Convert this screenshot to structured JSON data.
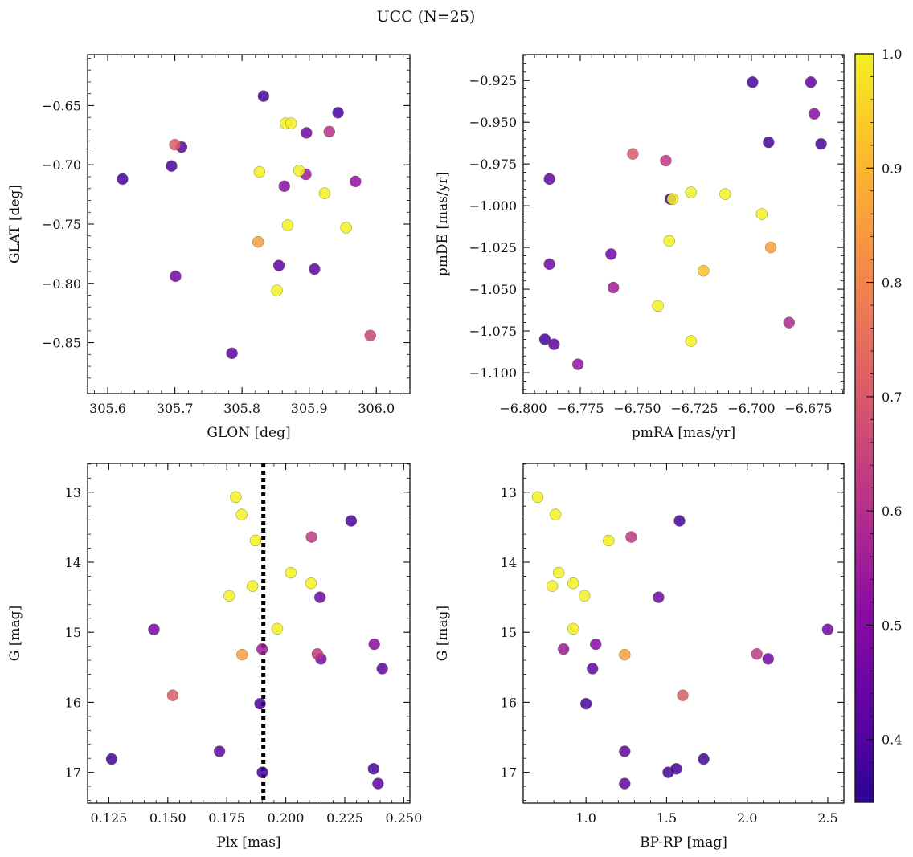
{
  "figure": {
    "title": "UCC (N=25)"
  },
  "colorbar": {
    "min": 0.345,
    "max": 1.0,
    "ticks": [
      0.4,
      0.5,
      0.6,
      0.7,
      0.8,
      0.9,
      1.0
    ],
    "tick_labels": [
      "0.4",
      "0.5",
      "0.6",
      "0.7",
      "0.8",
      "0.9",
      "1.0"
    ],
    "colormap": "plasma"
  },
  "chart_data": [
    {
      "type": "scatter",
      "id": "glon-glat",
      "xlabel": "GLON [deg]",
      "ylabel": "GLAT [deg]",
      "xlim": [
        305.57,
        306.05
      ],
      "ylim": [
        -0.893,
        -0.607
      ],
      "y_inverted": false,
      "xticks": [
        305.6,
        305.7,
        305.8,
        305.9,
        306.0
      ],
      "xtick_labels": [
        "305.6",
        "305.7",
        "305.8",
        "305.9",
        "306.0"
      ],
      "yticks": [
        -0.85,
        -0.8,
        -0.75,
        -0.7,
        -0.65
      ],
      "ytick_labels": [
        "−0.85",
        "−0.80",
        "−0.75",
        "−0.70",
        "−0.65"
      ],
      "points": [
        {
          "x": 305.832,
          "y": -0.642,
          "c": 0.38
        },
        {
          "x": 305.943,
          "y": -0.656,
          "c": 0.38
        },
        {
          "x": 305.865,
          "y": -0.665,
          "c": 1.0
        },
        {
          "x": 305.873,
          "y": -0.665,
          "c": 1.0
        },
        {
          "x": 305.896,
          "y": -0.673,
          "c": 0.45
        },
        {
          "x": 305.93,
          "y": -0.672,
          "c": 0.6
        },
        {
          "x": 305.7,
          "y": -0.683,
          "c": 0.7
        },
        {
          "x": 305.71,
          "y": -0.685,
          "c": 0.42
        },
        {
          "x": 305.695,
          "y": -0.701,
          "c": 0.38
        },
        {
          "x": 305.622,
          "y": -0.712,
          "c": 0.38
        },
        {
          "x": 305.826,
          "y": -0.706,
          "c": 1.0
        },
        {
          "x": 305.885,
          "y": -0.705,
          "c": 1.0
        },
        {
          "x": 305.895,
          "y": -0.708,
          "c": 0.55
        },
        {
          "x": 305.969,
          "y": -0.714,
          "c": 0.52
        },
        {
          "x": 305.863,
          "y": -0.718,
          "c": 0.5
        },
        {
          "x": 305.923,
          "y": -0.724,
          "c": 1.0
        },
        {
          "x": 305.868,
          "y": -0.751,
          "c": 1.0
        },
        {
          "x": 305.955,
          "y": -0.753,
          "c": 1.0
        },
        {
          "x": 305.824,
          "y": -0.765,
          "c": 0.85
        },
        {
          "x": 305.855,
          "y": -0.785,
          "c": 0.42
        },
        {
          "x": 305.908,
          "y": -0.788,
          "c": 0.42
        },
        {
          "x": 305.701,
          "y": -0.794,
          "c": 0.45
        },
        {
          "x": 305.852,
          "y": -0.806,
          "c": 1.0
        },
        {
          "x": 305.785,
          "y": -0.859,
          "c": 0.42
        },
        {
          "x": 305.991,
          "y": -0.844,
          "c": 0.65
        }
      ]
    },
    {
      "type": "scatter",
      "id": "pmra-pmde",
      "xlabel": "pmRA [mas/yr]",
      "ylabel": "pmDE [mas/yr]",
      "xlim": [
        -6.8,
        -6.6595
      ],
      "ylim": [
        -1.1125,
        -0.9095
      ],
      "y_inverted": false,
      "xticks": [
        -6.8,
        -6.775,
        -6.75,
        -6.725,
        -6.7,
        -6.675
      ],
      "xtick_labels": [
        "−6.800",
        "−6.775",
        "−6.750",
        "−6.725",
        "−6.700",
        "−6.675"
      ],
      "yticks": [
        -1.1,
        -1.075,
        -1.05,
        -1.025,
        -1.0,
        -0.975,
        -0.95,
        -0.925
      ],
      "ytick_labels": [
        "−1.100",
        "−1.075",
        "−1.050",
        "−1.025",
        "−1.000",
        "−0.975",
        "−0.950",
        "−0.925"
      ],
      "points": [
        {
          "x": -6.6995,
          "y": -0.926,
          "c": 0.38
        },
        {
          "x": -6.674,
          "y": -0.926,
          "c": 0.42
        },
        {
          "x": -6.6725,
          "y": -0.945,
          "c": 0.5
        },
        {
          "x": -6.6925,
          "y": -0.962,
          "c": 0.38
        },
        {
          "x": -6.6695,
          "y": -0.963,
          "c": 0.38
        },
        {
          "x": -6.752,
          "y": -0.969,
          "c": 0.7
        },
        {
          "x": -6.7375,
          "y": -0.973,
          "c": 0.62
        },
        {
          "x": -6.7885,
          "y": -0.984,
          "c": 0.42
        },
        {
          "x": -6.7265,
          "y": -0.992,
          "c": 1.0
        },
        {
          "x": -6.7115,
          "y": -0.993,
          "c": 1.0
        },
        {
          "x": -6.7355,
          "y": -0.996,
          "c": 0.38
        },
        {
          "x": -6.7345,
          "y": -0.996,
          "c": 1.0
        },
        {
          "x": -6.6955,
          "y": -1.005,
          "c": 1.0
        },
        {
          "x": -6.736,
          "y": -1.021,
          "c": 1.0
        },
        {
          "x": -6.6915,
          "y": -1.025,
          "c": 0.85
        },
        {
          "x": -6.7615,
          "y": -1.029,
          "c": 0.45
        },
        {
          "x": -6.7885,
          "y": -1.035,
          "c": 0.45
        },
        {
          "x": -6.721,
          "y": -1.039,
          "c": 0.92
        },
        {
          "x": -6.7605,
          "y": -1.049,
          "c": 0.55
        },
        {
          "x": -6.741,
          "y": -1.06,
          "c": 1.0
        },
        {
          "x": -6.6835,
          "y": -1.07,
          "c": 0.58
        },
        {
          "x": -6.7905,
          "y": -1.08,
          "c": 0.38
        },
        {
          "x": -6.7865,
          "y": -1.083,
          "c": 0.42
        },
        {
          "x": -6.7265,
          "y": -1.081,
          "c": 1.0
        },
        {
          "x": -6.776,
          "y": -1.095,
          "c": 0.52
        }
      ]
    },
    {
      "type": "scatter",
      "id": "plx-g",
      "xlabel": "Plx [mas]",
      "ylabel": "G [mag]",
      "xlim": [
        0.116,
        0.2526
      ],
      "ylim": [
        12.59,
        17.44
      ],
      "y_inverted": true,
      "xticks": [
        0.125,
        0.15,
        0.175,
        0.2,
        0.225,
        0.25
      ],
      "xtick_labels": [
        "0.125",
        "0.150",
        "0.175",
        "0.200",
        "0.225",
        "0.250"
      ],
      "yticks": [
        13,
        14,
        15,
        16,
        17
      ],
      "ytick_labels": [
        "13",
        "14",
        "15",
        "16",
        "17"
      ],
      "vline": {
        "x": 0.1905
      },
      "points": [
        {
          "x": 0.1788,
          "y": 13.07,
          "c": 1.0
        },
        {
          "x": 0.1813,
          "y": 13.32,
          "c": 1.0
        },
        {
          "x": 0.2277,
          "y": 13.41,
          "c": 0.38
        },
        {
          "x": 0.2109,
          "y": 13.64,
          "c": 0.62
        },
        {
          "x": 0.1872,
          "y": 13.69,
          "c": 1.0
        },
        {
          "x": 0.2021,
          "y": 14.15,
          "c": 1.0
        },
        {
          "x": 0.2107,
          "y": 14.3,
          "c": 1.0
        },
        {
          "x": 0.1859,
          "y": 14.34,
          "c": 1.0
        },
        {
          "x": 0.1761,
          "y": 14.48,
          "c": 1.0
        },
        {
          "x": 0.2145,
          "y": 14.5,
          "c": 0.45
        },
        {
          "x": 0.1441,
          "y": 14.96,
          "c": 0.45
        },
        {
          "x": 0.1964,
          "y": 14.95,
          "c": 1.0
        },
        {
          "x": 0.2375,
          "y": 15.17,
          "c": 0.5
        },
        {
          "x": 0.19,
          "y": 15.24,
          "c": 0.55
        },
        {
          "x": 0.1815,
          "y": 15.32,
          "c": 0.85
        },
        {
          "x": 0.2134,
          "y": 15.31,
          "c": 0.62
        },
        {
          "x": 0.2149,
          "y": 15.38,
          "c": 0.45
        },
        {
          "x": 0.2409,
          "y": 15.52,
          "c": 0.42
        },
        {
          "x": 0.1521,
          "y": 15.9,
          "c": 0.7
        },
        {
          "x": 0.1891,
          "y": 16.02,
          "c": 0.38
        },
        {
          "x": 0.1262,
          "y": 16.81,
          "c": 0.38
        },
        {
          "x": 0.1719,
          "y": 16.7,
          "c": 0.42
        },
        {
          "x": 0.1901,
          "y": 17.0,
          "c": 0.38
        },
        {
          "x": 0.2372,
          "y": 16.95,
          "c": 0.38
        },
        {
          "x": 0.2391,
          "y": 17.16,
          "c": 0.42
        }
      ]
    },
    {
      "type": "scatter",
      "id": "bprp-g",
      "xlabel": "BP-RP [mag]",
      "ylabel": "G [mag]",
      "xlim": [
        0.61,
        2.6
      ],
      "ylim": [
        12.59,
        17.44
      ],
      "y_inverted": true,
      "xticks": [
        1.0,
        1.5,
        2.0,
        2.5
      ],
      "xtick_labels": [
        "1.0",
        "1.5",
        "2.0",
        "2.5"
      ],
      "yticks": [
        13,
        14,
        15,
        16,
        17
      ],
      "ytick_labels": [
        "13",
        "14",
        "15",
        "16",
        "17"
      ],
      "points": [
        {
          "x": 0.7,
          "y": 13.07,
          "c": 1.0
        },
        {
          "x": 0.81,
          "y": 13.32,
          "c": 1.0
        },
        {
          "x": 1.58,
          "y": 13.41,
          "c": 0.38
        },
        {
          "x": 1.28,
          "y": 13.64,
          "c": 0.62
        },
        {
          "x": 1.14,
          "y": 13.69,
          "c": 1.0
        },
        {
          "x": 0.83,
          "y": 14.15,
          "c": 1.0
        },
        {
          "x": 0.92,
          "y": 14.3,
          "c": 1.0
        },
        {
          "x": 0.79,
          "y": 14.34,
          "c": 1.0
        },
        {
          "x": 0.99,
          "y": 14.48,
          "c": 1.0
        },
        {
          "x": 1.45,
          "y": 14.5,
          "c": 0.45
        },
        {
          "x": 2.5,
          "y": 14.96,
          "c": 0.45
        },
        {
          "x": 0.92,
          "y": 14.95,
          "c": 1.0
        },
        {
          "x": 1.06,
          "y": 15.17,
          "c": 0.5
        },
        {
          "x": 0.86,
          "y": 15.24,
          "c": 0.55
        },
        {
          "x": 1.24,
          "y": 15.32,
          "c": 0.85
        },
        {
          "x": 2.06,
          "y": 15.31,
          "c": 0.62
        },
        {
          "x": 2.13,
          "y": 15.38,
          "c": 0.45
        },
        {
          "x": 1.04,
          "y": 15.52,
          "c": 0.42
        },
        {
          "x": 1.6,
          "y": 15.9,
          "c": 0.7
        },
        {
          "x": 1.0,
          "y": 16.02,
          "c": 0.38
        },
        {
          "x": 1.73,
          "y": 16.81,
          "c": 0.38
        },
        {
          "x": 1.24,
          "y": 16.7,
          "c": 0.42
        },
        {
          "x": 1.51,
          "y": 17.0,
          "c": 0.38
        },
        {
          "x": 1.56,
          "y": 16.95,
          "c": 0.38
        },
        {
          "x": 1.24,
          "y": 17.16,
          "c": 0.42
        }
      ]
    }
  ]
}
